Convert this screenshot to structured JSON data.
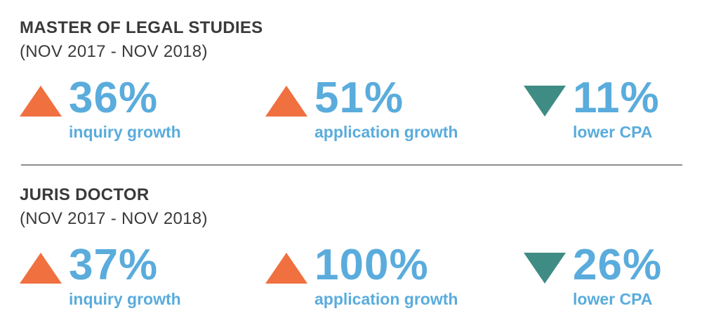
{
  "colors": {
    "heading": "#3a3a3a",
    "stat_text": "#5aacdc",
    "up_arrow": "#f07040",
    "down_arrow": "#3f8c84",
    "divider": "#8c8c8c"
  },
  "sections": [
    {
      "title": "MASTER OF LEGAL STUDIES",
      "period": "(NOV 2017 - NOV 2018)",
      "stats": [
        {
          "direction": "up",
          "icon": "up-triangle-icon",
          "value": "36%",
          "label": "inquiry growth"
        },
        {
          "direction": "up",
          "icon": "up-triangle-icon",
          "value": "51%",
          "label": "application growth"
        },
        {
          "direction": "down",
          "icon": "down-triangle-icon",
          "value": "11%",
          "label": "lower CPA"
        }
      ]
    },
    {
      "title": "JURIS DOCTOR",
      "period": "(NOV 2017 - NOV 2018)",
      "stats": [
        {
          "direction": "up",
          "icon": "up-triangle-icon",
          "value": "37%",
          "label": "inquiry growth"
        },
        {
          "direction": "up",
          "icon": "up-triangle-icon",
          "value": "100%",
          "label": "application growth"
        },
        {
          "direction": "down",
          "icon": "down-triangle-icon",
          "value": "26%",
          "label": "lower CPA"
        }
      ]
    }
  ]
}
